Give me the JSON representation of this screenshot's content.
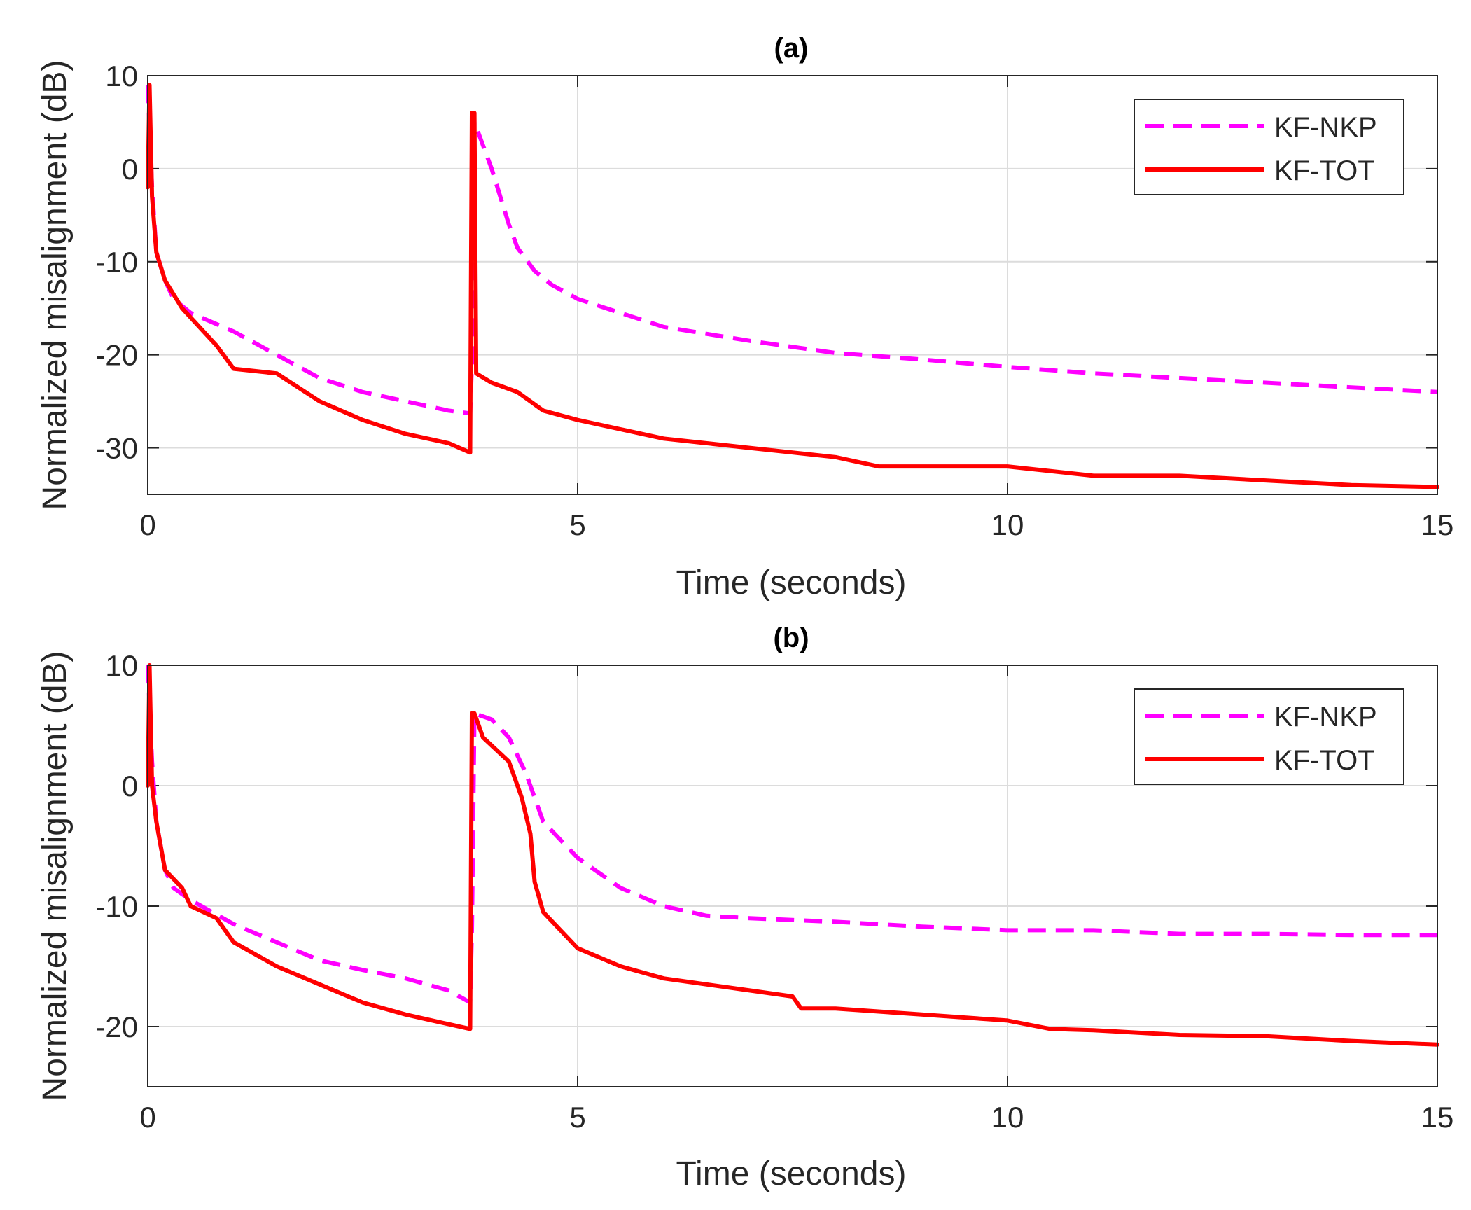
{
  "chart_data": [
    {
      "type": "line",
      "title": "(a)",
      "xlabel": "Time (seconds)",
      "ylabel": "Normalized misalignment (dB)",
      "xlim": [
        0,
        15
      ],
      "ylim": [
        -35,
        10
      ],
      "xticks": [
        0,
        5,
        10,
        15
      ],
      "yticks": [
        10,
        0,
        -10,
        -20,
        -30
      ],
      "xtick_labels": [
        "0",
        "5",
        "10",
        "15"
      ],
      "ytick_labels": [
        "10",
        "0",
        "-10",
        "-20",
        "-30"
      ],
      "grid": true,
      "legend_position": "top-right",
      "series": [
        {
          "name": "KF-NKP",
          "color": "#ff00ff",
          "style": "dashed",
          "points": [
            [
              0,
              9
            ],
            [
              0.05,
              -2
            ],
            [
              0.1,
              -9
            ],
            [
              0.2,
              -12
            ],
            [
              0.3,
              -14
            ],
            [
              0.5,
              -15.5
            ],
            [
              1,
              -17.5
            ],
            [
              1.5,
              -20
            ],
            [
              2,
              -22.5
            ],
            [
              2.5,
              -24
            ],
            [
              3,
              -25
            ],
            [
              3.5,
              -26
            ],
            [
              3.75,
              -26.3
            ],
            [
              3.77,
              -21
            ],
            [
              3.8,
              5
            ],
            [
              4,
              0
            ],
            [
              4.2,
              -6
            ],
            [
              4.3,
              -8.5
            ],
            [
              4.5,
              -11
            ],
            [
              4.7,
              -12.5
            ],
            [
              5,
              -14
            ],
            [
              5.5,
              -15.5
            ],
            [
              6,
              -17
            ],
            [
              7,
              -18.5
            ],
            [
              8,
              -19.8
            ],
            [
              9,
              -20.5
            ],
            [
              10,
              -21.3
            ],
            [
              11,
              -22
            ],
            [
              12,
              -22.5
            ],
            [
              13,
              -23
            ],
            [
              14,
              -23.5
            ],
            [
              15,
              -24
            ]
          ]
        },
        {
          "name": "KF-TOT",
          "color": "#ff0000",
          "style": "solid",
          "points": [
            [
              0,
              -2
            ],
            [
              0.02,
              9
            ],
            [
              0.05,
              -3
            ],
            [
              0.1,
              -9
            ],
            [
              0.2,
              -12
            ],
            [
              0.4,
              -15
            ],
            [
              0.6,
              -17
            ],
            [
              0.8,
              -19
            ],
            [
              1,
              -21.5
            ],
            [
              1.5,
              -22
            ],
            [
              2,
              -25
            ],
            [
              2.5,
              -27
            ],
            [
              3,
              -28.5
            ],
            [
              3.5,
              -29.5
            ],
            [
              3.75,
              -30.5
            ],
            [
              3.77,
              6
            ],
            [
              3.8,
              6
            ],
            [
              3.82,
              -22
            ],
            [
              4,
              -23
            ],
            [
              4.3,
              -24
            ],
            [
              4.6,
              -26
            ],
            [
              5,
              -27
            ],
            [
              5.5,
              -28
            ],
            [
              6,
              -29
            ],
            [
              7,
              -30
            ],
            [
              7.5,
              -30.5
            ],
            [
              8,
              -31
            ],
            [
              8.5,
              -32
            ],
            [
              9,
              -32
            ],
            [
              10,
              -32
            ],
            [
              11,
              -33
            ],
            [
              12,
              -33
            ],
            [
              13,
              -33.5
            ],
            [
              14,
              -34
            ],
            [
              15,
              -34.2
            ]
          ]
        }
      ]
    },
    {
      "type": "line",
      "title": "(b)",
      "xlabel": "Time (seconds)",
      "ylabel": "Normalized misalignment (dB)",
      "xlim": [
        0,
        15
      ],
      "ylim": [
        -25,
        10
      ],
      "xticks": [
        0,
        5,
        10,
        15
      ],
      "yticks": [
        10,
        0,
        -10,
        -20
      ],
      "xtick_labels": [
        "0",
        "5",
        "10",
        "15"
      ],
      "ytick_labels": [
        "10",
        "0",
        "-10",
        "-20"
      ],
      "grid": true,
      "legend_position": "top-right",
      "series": [
        {
          "name": "KF-NKP",
          "color": "#ff00ff",
          "style": "dashed",
          "points": [
            [
              0,
              10
            ],
            [
              0.05,
              2
            ],
            [
              0.1,
              -3
            ],
            [
              0.2,
              -7
            ],
            [
              0.3,
              -8.5
            ],
            [
              0.5,
              -9.5
            ],
            [
              1,
              -11.5
            ],
            [
              1.5,
              -13
            ],
            [
              2,
              -14.5
            ],
            [
              2.5,
              -15.3
            ],
            [
              3,
              -16
            ],
            [
              3.5,
              -17
            ],
            [
              3.75,
              -18
            ],
            [
              3.77,
              -12
            ],
            [
              3.8,
              6
            ],
            [
              4,
              5.5
            ],
            [
              4.2,
              4
            ],
            [
              4.4,
              1
            ],
            [
              4.6,
              -3
            ],
            [
              4.8,
              -4.5
            ],
            [
              5,
              -6
            ],
            [
              5.5,
              -8.5
            ],
            [
              6,
              -10
            ],
            [
              6.5,
              -10.8
            ],
            [
              7,
              -11
            ],
            [
              8,
              -11.3
            ],
            [
              9,
              -11.7
            ],
            [
              10,
              -12
            ],
            [
              11,
              -12
            ],
            [
              12,
              -12.3
            ],
            [
              13,
              -12.3
            ],
            [
              14,
              -12.4
            ],
            [
              15,
              -12.4
            ]
          ]
        },
        {
          "name": "KF-TOT",
          "color": "#ff0000",
          "style": "solid",
          "points": [
            [
              0,
              0
            ],
            [
              0.02,
              10
            ],
            [
              0.05,
              0
            ],
            [
              0.1,
              -3
            ],
            [
              0.2,
              -7
            ],
            [
              0.4,
              -8.5
            ],
            [
              0.5,
              -10
            ],
            [
              0.8,
              -11
            ],
            [
              1,
              -13
            ],
            [
              1.5,
              -15
            ],
            [
              2,
              -16.5
            ],
            [
              2.5,
              -18
            ],
            [
              3,
              -19
            ],
            [
              3.5,
              -19.8
            ],
            [
              3.75,
              -20.2
            ],
            [
              3.77,
              6
            ],
            [
              3.8,
              6
            ],
            [
              3.9,
              4
            ],
            [
              4.2,
              2
            ],
            [
              4.35,
              -1
            ],
            [
              4.45,
              -4
            ],
            [
              4.5,
              -8
            ],
            [
              4.6,
              -10.5
            ],
            [
              5,
              -13.5
            ],
            [
              5.5,
              -15
            ],
            [
              6,
              -16
            ],
            [
              7,
              -17
            ],
            [
              7.5,
              -17.5
            ],
            [
              7.6,
              -18.5
            ],
            [
              8,
              -18.5
            ],
            [
              9,
              -19
            ],
            [
              10,
              -19.5
            ],
            [
              10.5,
              -20.2
            ],
            [
              11,
              -20.3
            ],
            [
              12,
              -20.7
            ],
            [
              13,
              -20.8
            ],
            [
              14,
              -21.2
            ],
            [
              15,
              -21.5
            ]
          ]
        }
      ]
    }
  ]
}
